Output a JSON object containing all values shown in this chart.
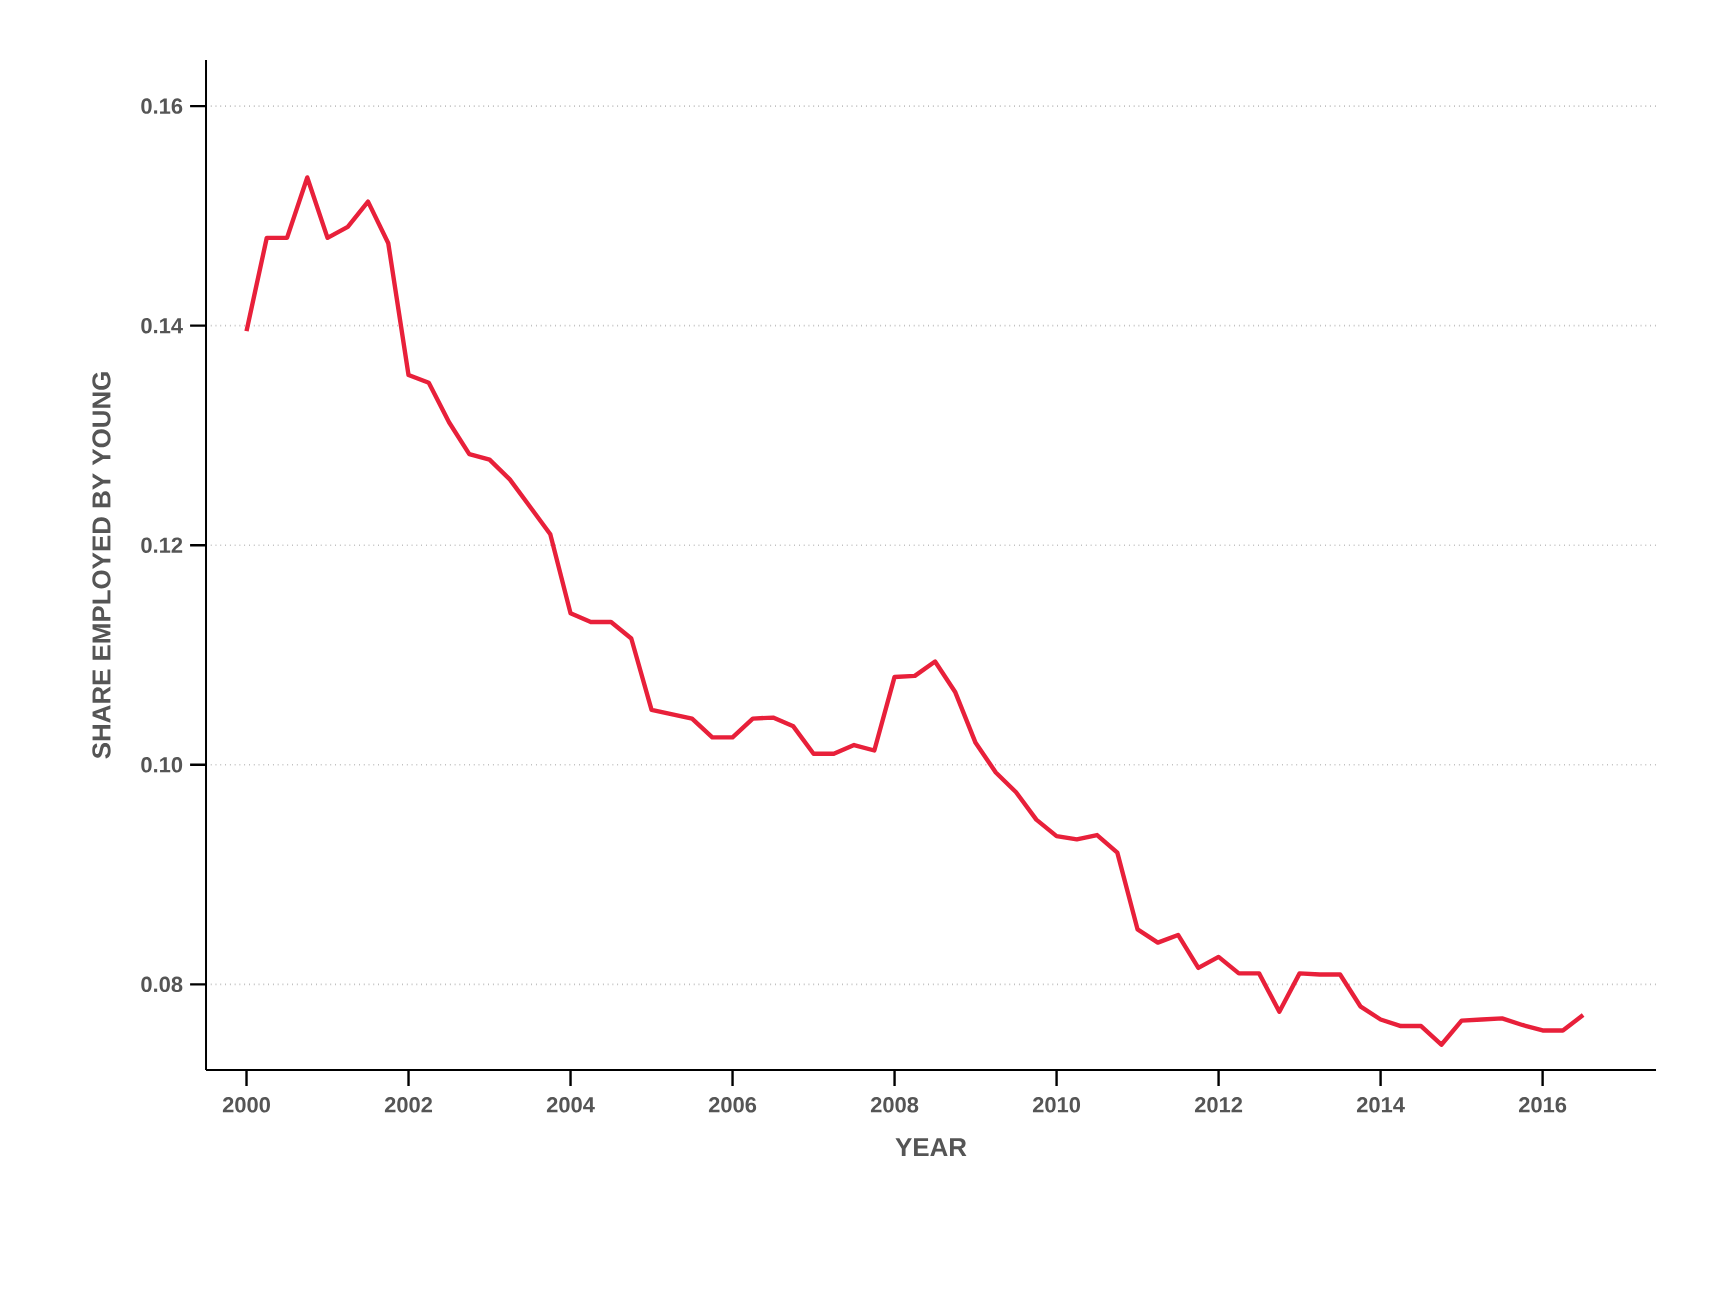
{
  "chart_data": {
    "type": "line",
    "xlabel": "YEAR",
    "ylabel": "SHARE EMPLOYED BY YOUNG",
    "x": [
      2000,
      2000.25,
      2000.5,
      2000.75,
      2001,
      2001.25,
      2001.5,
      2001.75,
      2002,
      2002.25,
      2002.5,
      2002.75,
      2003,
      2003.25,
      2003.5,
      2003.75,
      2004,
      2004.25,
      2004.5,
      2004.75,
      2005,
      2005.25,
      2005.5,
      2005.75,
      2006,
      2006.25,
      2006.5,
      2006.75,
      2007,
      2007.25,
      2007.5,
      2007.75,
      2008,
      2008.25,
      2008.5,
      2008.75,
      2009,
      2009.25,
      2009.5,
      2009.75,
      2010,
      2010.25,
      2010.5,
      2010.75,
      2011,
      2011.25,
      2011.5,
      2011.75,
      2012,
      2012.25,
      2012.5,
      2012.75,
      2013,
      2013.25,
      2013.5,
      2013.75,
      2014,
      2014.25,
      2014.5,
      2014.75,
      2015,
      2015.25,
      2015.5,
      2015.75,
      2016,
      2016.25,
      2016.5
    ],
    "series": [
      {
        "color": "#e8203a",
        "values": [
          0.1395,
          0.148,
          0.148,
          0.1535,
          0.148,
          0.149,
          0.1513,
          0.1475,
          0.1355,
          0.1348,
          0.1312,
          0.1283,
          0.1278,
          0.126,
          0.1235,
          0.121,
          0.1138,
          0.113,
          0.113,
          0.1115,
          0.105,
          0.1046,
          0.1042,
          0.1025,
          0.1025,
          0.1042,
          0.1043,
          0.1035,
          0.101,
          0.101,
          0.1018,
          0.1013,
          0.108,
          0.1081,
          0.1094,
          0.1066,
          0.102,
          0.0993,
          0.0975,
          0.095,
          0.0935,
          0.0932,
          0.0936,
          0.092,
          0.085,
          0.0838,
          0.0845,
          0.0815,
          0.0825,
          0.081,
          0.081,
          0.0775,
          0.081,
          0.0809,
          0.0809,
          0.078,
          0.0768,
          0.0762,
          0.0762,
          0.0745,
          0.0767,
          0.0768,
          0.0769,
          0.0763,
          0.0758,
          0.0758,
          0.0772
        ]
      }
    ],
    "xlim": [
      1999.5,
      2017.4
    ],
    "ylim": [
      0.0722,
      0.1642
    ],
    "xticks": [
      2000,
      2002,
      2004,
      2006,
      2008,
      2010,
      2012,
      2014,
      2016
    ],
    "yticks": [
      {
        "value": 0.08,
        "label": "0.08"
      },
      {
        "value": 0.1,
        "label": "0.10"
      },
      {
        "value": 0.12,
        "label": "0.12"
      },
      {
        "value": 0.14,
        "label": "0.14"
      },
      {
        "value": 0.16,
        "label": "0.16"
      }
    ],
    "grid": "y",
    "marker": "none",
    "line_style": "solid"
  }
}
